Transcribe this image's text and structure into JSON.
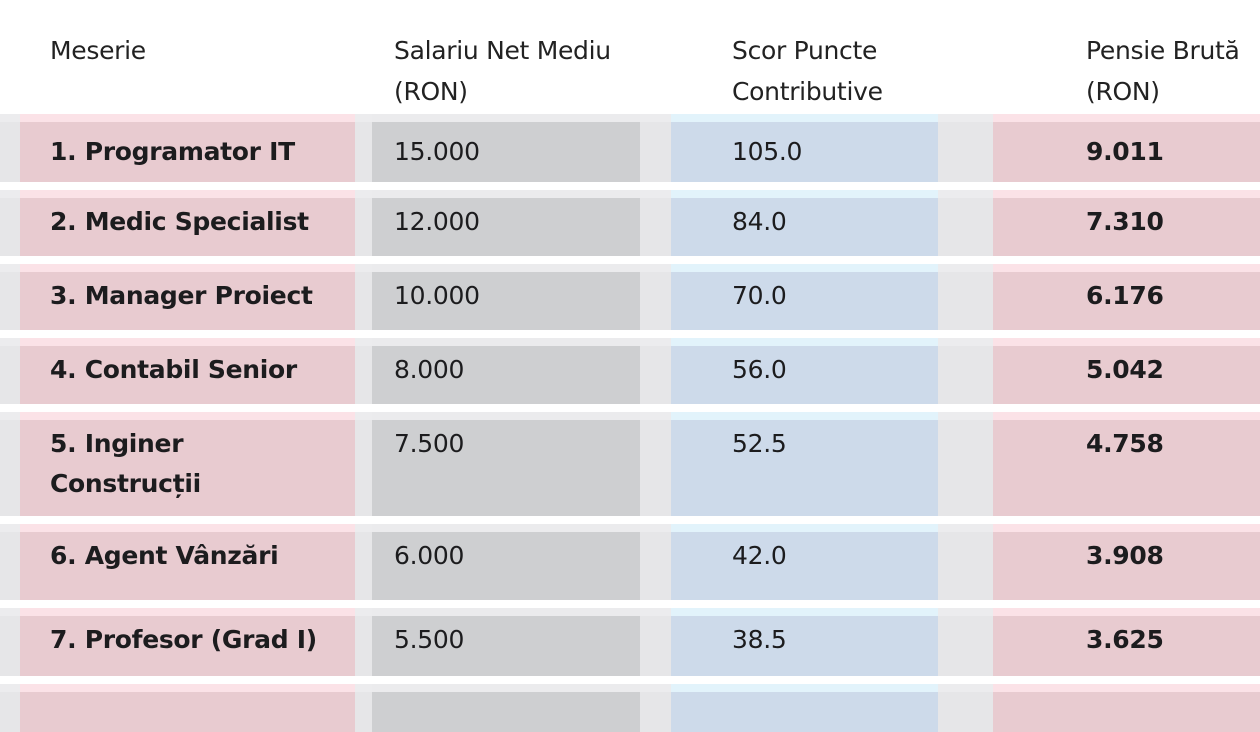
{
  "headers": [
    "Meserie",
    "Salariu Net Mediu (RON)",
    "Scor Puncte Contributive",
    "Pensie Brută (RON)"
  ],
  "rows": [
    {
      "meserie": "1. Programator IT",
      "salariu": "15.000",
      "scor": "105.0",
      "pensie": "9.011"
    },
    {
      "meserie": "2. Medic Specialist",
      "salariu": "12.000",
      "scor": "84.0",
      "pensie": "7.310"
    },
    {
      "meserie": "3. Manager Proiect",
      "salariu": "10.000",
      "scor": "70.0",
      "pensie": "6.176"
    },
    {
      "meserie": "4. Contabil Senior",
      "salariu": "8.000",
      "scor": "56.0",
      "pensie": "5.042"
    },
    {
      "meserie": "5. Inginer Construcții",
      "salariu": "7.500",
      "scor": "52.5",
      "pensie": "4.758"
    },
    {
      "meserie": "6. Agent Vânzări",
      "salariu": "6.000",
      "scor": "42.0",
      "pensie": "3.908"
    },
    {
      "meserie": "7. Profesor (Grad I)",
      "salariu": "5.500",
      "scor": "38.5",
      "pensie": "3.625"
    }
  ],
  "colors": {
    "col_meserie": "#e8cbd0",
    "col_salariu": "#cecfd1",
    "col_scor": "#cddaea",
    "col_pensie": "#e8cbd0",
    "row_bg": "#e6e6e8"
  }
}
